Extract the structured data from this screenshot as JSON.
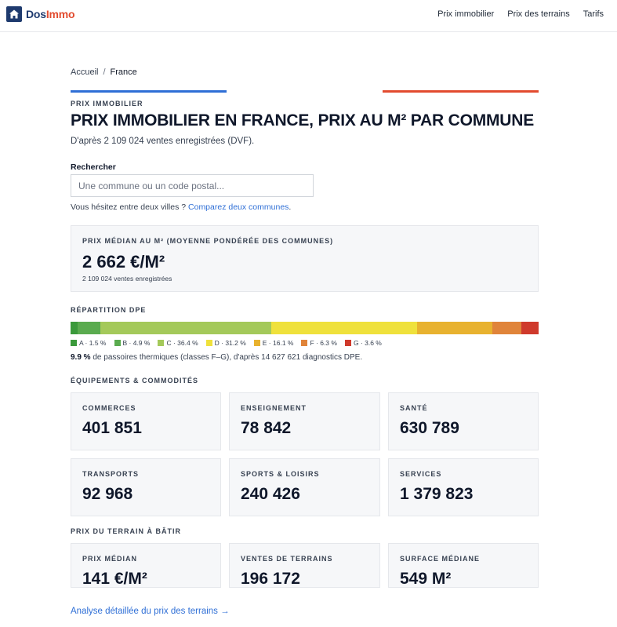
{
  "header": {
    "logo_dos": "Dos",
    "logo_immo": "Immo",
    "nav": [
      "Prix immobilier",
      "Prix des terrains",
      "Tarifs"
    ]
  },
  "breadcrumb": {
    "home": "Accueil",
    "separator": "/",
    "current": "France"
  },
  "page": {
    "kicker": "PRIX IMMOBILIER",
    "title": "PRIX IMMOBILIER EN FRANCE, PRIX AU M² PAR COMMUNE",
    "subtitle": "D'après 2 109 024 ventes enregistrées (DVF)."
  },
  "search": {
    "label": "Rechercher",
    "placeholder": "Une commune ou un code postal...",
    "value": "",
    "compare_prefix": "Vous hésitez entre deux villes ?",
    "compare_link": "Comparez deux communes",
    "compare_suffix": "."
  },
  "median": {
    "kicker": "PRIX MÉDIAN AU M² (MOYENNE PONDÉRÉE DES COMMUNES)",
    "value": "2 662 €/M²",
    "sub": "2 109 024 ventes enregistrées"
  },
  "dpe": {
    "kicker": "RÉPARTITION DPE",
    "classes": [
      {
        "label": "A · 1.5 %",
        "share": 1.5,
        "color": "#3b9a3b"
      },
      {
        "label": "B · 4.9 %",
        "share": 4.9,
        "color": "#5aab4f"
      },
      {
        "label": "C · 36.4 %",
        "share": 36.4,
        "color": "#a4c95a"
      },
      {
        "label": "D · 31.2 %",
        "share": 31.2,
        "color": "#efe13c"
      },
      {
        "label": "E · 16.1 %",
        "share": 16.1,
        "color": "#e8b22f"
      },
      {
        "label": "F · 6.3 %",
        "share": 6.3,
        "color": "#e0843a"
      },
      {
        "label": "G · 3.6 %",
        "share": 3.6,
        "color": "#cf3a2c"
      }
    ],
    "note_strong": "9.9 %",
    "note_rest": "de passoires thermiques (classes F–G), d'après 14 627 621 diagnostics DPE."
  },
  "equipements": {
    "kicker": "ÉQUIPEMENTS & COMMODITÉS",
    "items": [
      {
        "label": "COMMERCES",
        "value": "401 851"
      },
      {
        "label": "ENSEIGNEMENT",
        "value": "78 842"
      },
      {
        "label": "SANTÉ",
        "value": "630 789"
      },
      {
        "label": "TRANSPORTS",
        "value": "92 968"
      },
      {
        "label": "SPORTS & LOISIRS",
        "value": "240 426"
      },
      {
        "label": "SERVICES",
        "value": "1 379 823"
      }
    ]
  },
  "terrain": {
    "kicker": "PRIX DU TERRAIN À BÂTIR",
    "items": [
      {
        "label": "PRIX MÉDIAN",
        "value": "141 €/M²"
      },
      {
        "label": "VENTES DE TERRAINS",
        "value": "196 172"
      },
      {
        "label": "SURFACE MÉDIANE",
        "value": "549 M²"
      }
    ],
    "link": "Analyse détaillée du prix des terrains →"
  }
}
